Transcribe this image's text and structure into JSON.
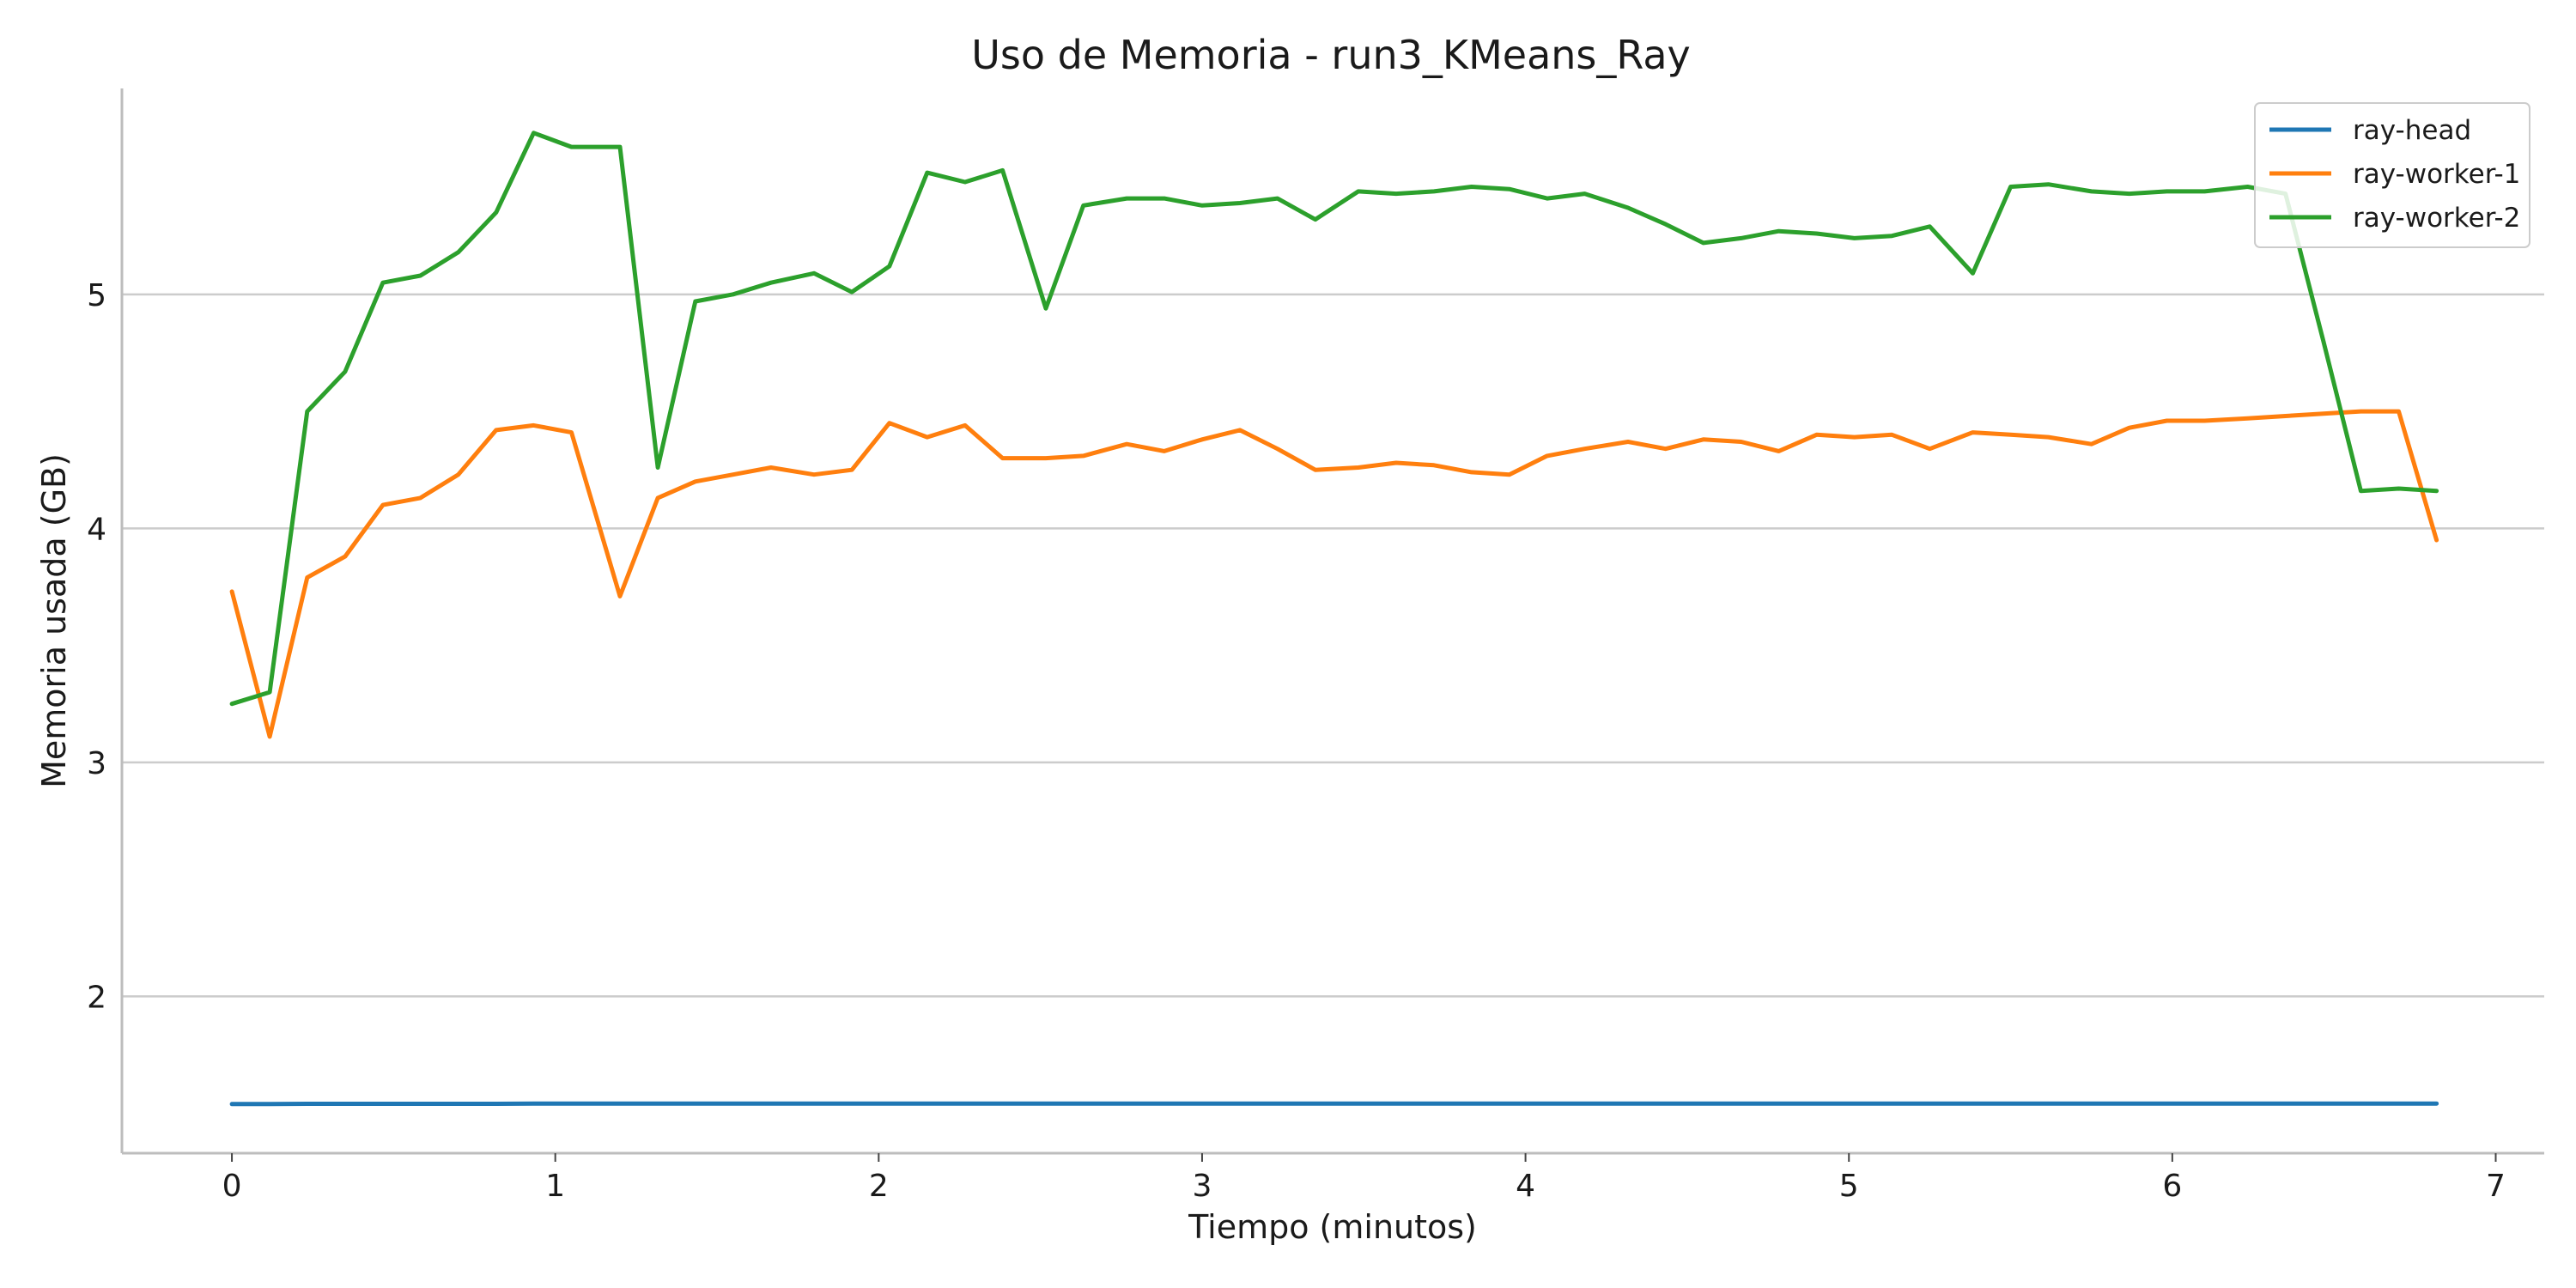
{
  "chart_data": {
    "type": "line",
    "title": "Uso de Memoria - run3_KMeans_Ray",
    "xlabel": "Tiempo (minutos)",
    "ylabel": "Memoria usada (GB)",
    "xlim": [
      -0.34,
      7.15
    ],
    "ylim": [
      1.33,
      5.88
    ],
    "xticks": [
      0,
      1,
      2,
      3,
      4,
      5,
      6,
      7
    ],
    "yticks": [
      2,
      3,
      4,
      5
    ],
    "grid": "horizontal",
    "legend_position": "top-right",
    "x": [
      0,
      0.117,
      0.233,
      0.35,
      0.467,
      0.583,
      0.7,
      0.817,
      0.933,
      1.05,
      1.2,
      1.317,
      1.433,
      1.55,
      1.667,
      1.8,
      1.917,
      2.033,
      2.15,
      2.267,
      2.383,
      2.517,
      2.633,
      2.767,
      2.883,
      3.0,
      3.117,
      3.233,
      3.35,
      3.483,
      3.6,
      3.717,
      3.833,
      3.95,
      4.067,
      4.183,
      4.317,
      4.433,
      4.55,
      4.667,
      4.783,
      4.9,
      5.017,
      5.133,
      5.25,
      5.383,
      5.5,
      5.617,
      5.75,
      5.867,
      5.983,
      6.1,
      6.233,
      6.35,
      6.467,
      6.583,
      6.7,
      6.817
    ],
    "series": [
      {
        "name": "ray-head",
        "color": "#1f77b4",
        "values": [
          1.54,
          1.54,
          1.541,
          1.541,
          1.541,
          1.541,
          1.541,
          1.541,
          1.542,
          1.542,
          1.542,
          1.542,
          1.542,
          1.542,
          1.542,
          1.542,
          1.542,
          1.542,
          1.542,
          1.542,
          1.542,
          1.542,
          1.542,
          1.542,
          1.542,
          1.542,
          1.542,
          1.542,
          1.542,
          1.542,
          1.542,
          1.542,
          1.542,
          1.542,
          1.542,
          1.542,
          1.542,
          1.542,
          1.542,
          1.542,
          1.542,
          1.542,
          1.542,
          1.542,
          1.542,
          1.542,
          1.542,
          1.542,
          1.542,
          1.542,
          1.542,
          1.542,
          1.542,
          1.542,
          1.542,
          1.542,
          1.542,
          1.542
        ]
      },
      {
        "name": "ray-worker-1",
        "color": "#ff7f0e",
        "values": [
          3.73,
          3.11,
          3.79,
          3.88,
          4.1,
          4.13,
          4.23,
          4.42,
          4.44,
          4.41,
          3.71,
          4.13,
          4.2,
          4.23,
          4.26,
          4.23,
          4.25,
          4.45,
          4.39,
          4.44,
          4.3,
          4.3,
          4.31,
          4.36,
          4.33,
          4.38,
          4.42,
          4.34,
          4.25,
          4.26,
          4.28,
          4.27,
          4.24,
          4.23,
          4.31,
          4.34,
          4.37,
          4.34,
          4.38,
          4.37,
          4.33,
          4.4,
          4.39,
          4.4,
          4.34,
          4.41,
          4.4,
          4.39,
          4.36,
          4.43,
          4.46,
          4.46,
          4.47,
          4.48,
          4.49,
          4.5,
          4.5,
          3.95
        ]
      },
      {
        "name": "ray-worker-2",
        "color": "#2ca02c",
        "values": [
          3.25,
          3.3,
          4.5,
          4.67,
          5.05,
          5.08,
          5.18,
          5.35,
          5.69,
          5.63,
          5.63,
          4.26,
          4.97,
          5.0,
          5.05,
          5.09,
          5.01,
          5.12,
          5.52,
          5.48,
          5.53,
          4.94,
          5.38,
          5.41,
          5.41,
          5.38,
          5.39,
          5.41,
          5.32,
          5.44,
          5.43,
          5.44,
          5.46,
          5.45,
          5.41,
          5.43,
          5.37,
          5.3,
          5.22,
          5.24,
          5.27,
          5.26,
          5.24,
          5.25,
          5.29,
          5.09,
          5.46,
          5.47,
          5.44,
          5.43,
          5.44,
          5.44,
          5.46,
          5.43,
          4.8,
          4.16,
          4.17,
          4.16
        ]
      }
    ]
  }
}
